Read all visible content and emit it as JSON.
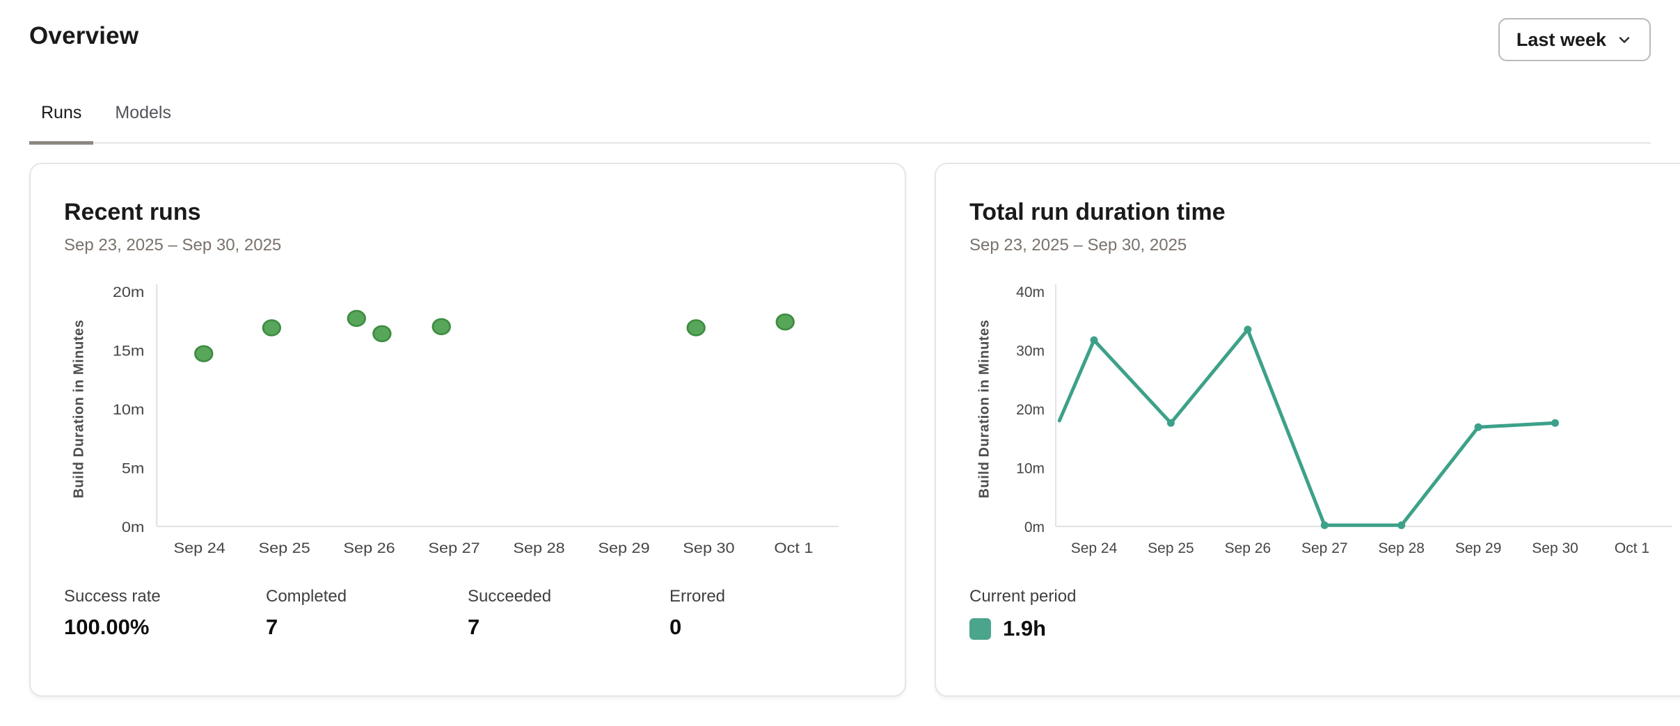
{
  "page": {
    "title": "Overview"
  },
  "period_selector": {
    "label": "Last week",
    "icon": "chevron-down"
  },
  "tabs": [
    {
      "label": "Runs",
      "active": true
    },
    {
      "label": "Models",
      "active": false
    }
  ],
  "cards": {
    "recent_runs": {
      "title": "Recent runs",
      "date_range": "Sep 23, 2025 – Sep 30, 2025",
      "stats": [
        {
          "label": "Success rate",
          "value": "100.00%"
        },
        {
          "label": "Completed",
          "value": "7"
        },
        {
          "label": "Succeeded",
          "value": "7"
        },
        {
          "label": "Errored",
          "value": "0"
        }
      ]
    },
    "total_run_duration": {
      "title": "Total run duration time",
      "date_range": "Sep 23, 2025 – Sep 30, 2025",
      "legend": {
        "label": "Current period",
        "value": "1.9h",
        "color": "#4aa58c"
      }
    }
  },
  "chart_data": [
    {
      "type": "scatter",
      "title": "Recent runs",
      "xlabel": "",
      "ylabel": "Build Duration in Minutes",
      "x_ticks": [
        "Sep 24",
        "Sep 25",
        "Sep 26",
        "Sep 27",
        "Sep 28",
        "Sep 29",
        "Sep 30",
        "Oct 1"
      ],
      "y_ticks": [
        "0m",
        "5m",
        "10m",
        "15m",
        "20m"
      ],
      "ylim": [
        0,
        20
      ],
      "grid": false,
      "x_unit": "days from Sep 24 tick",
      "points": [
        {
          "x": 0.05,
          "y": 14.7
        },
        {
          "x": 0.85,
          "y": 16.9
        },
        {
          "x": 1.85,
          "y": 17.7
        },
        {
          "x": 2.15,
          "y": 16.4
        },
        {
          "x": 2.85,
          "y": 17.0
        },
        {
          "x": 5.85,
          "y": 16.9
        },
        {
          "x": 6.9,
          "y": 17.4
        }
      ],
      "point_color": "#57a65a",
      "point_border": "#3d8c41",
      "axis_color": "#e2e2e2"
    },
    {
      "type": "line",
      "title": "Total run duration time",
      "xlabel": "",
      "ylabel": "Build Duration in Minutes",
      "x_ticks": [
        "Sep 24",
        "Sep 25",
        "Sep 26",
        "Sep 27",
        "Sep 28",
        "Sep 29",
        "Sep 30",
        "Oct 1"
      ],
      "y_ticks": [
        "0m",
        "10m",
        "20m",
        "30m",
        "40m"
      ],
      "ylim": [
        0,
        40
      ],
      "grid": false,
      "x_unit": "days from Sep 24 tick",
      "points": [
        {
          "x": -0.45,
          "y": 18.0
        },
        {
          "x": 0,
          "y": 31.7
        },
        {
          "x": 1,
          "y": 17.6
        },
        {
          "x": 2,
          "y": 33.5
        },
        {
          "x": 3,
          "y": 0.2
        },
        {
          "x": 4,
          "y": 0.2
        },
        {
          "x": 5,
          "y": 16.9
        },
        {
          "x": 6,
          "y": 17.6
        }
      ],
      "line_color": "#3da189",
      "axis_color": "#e2e2e2"
    }
  ]
}
